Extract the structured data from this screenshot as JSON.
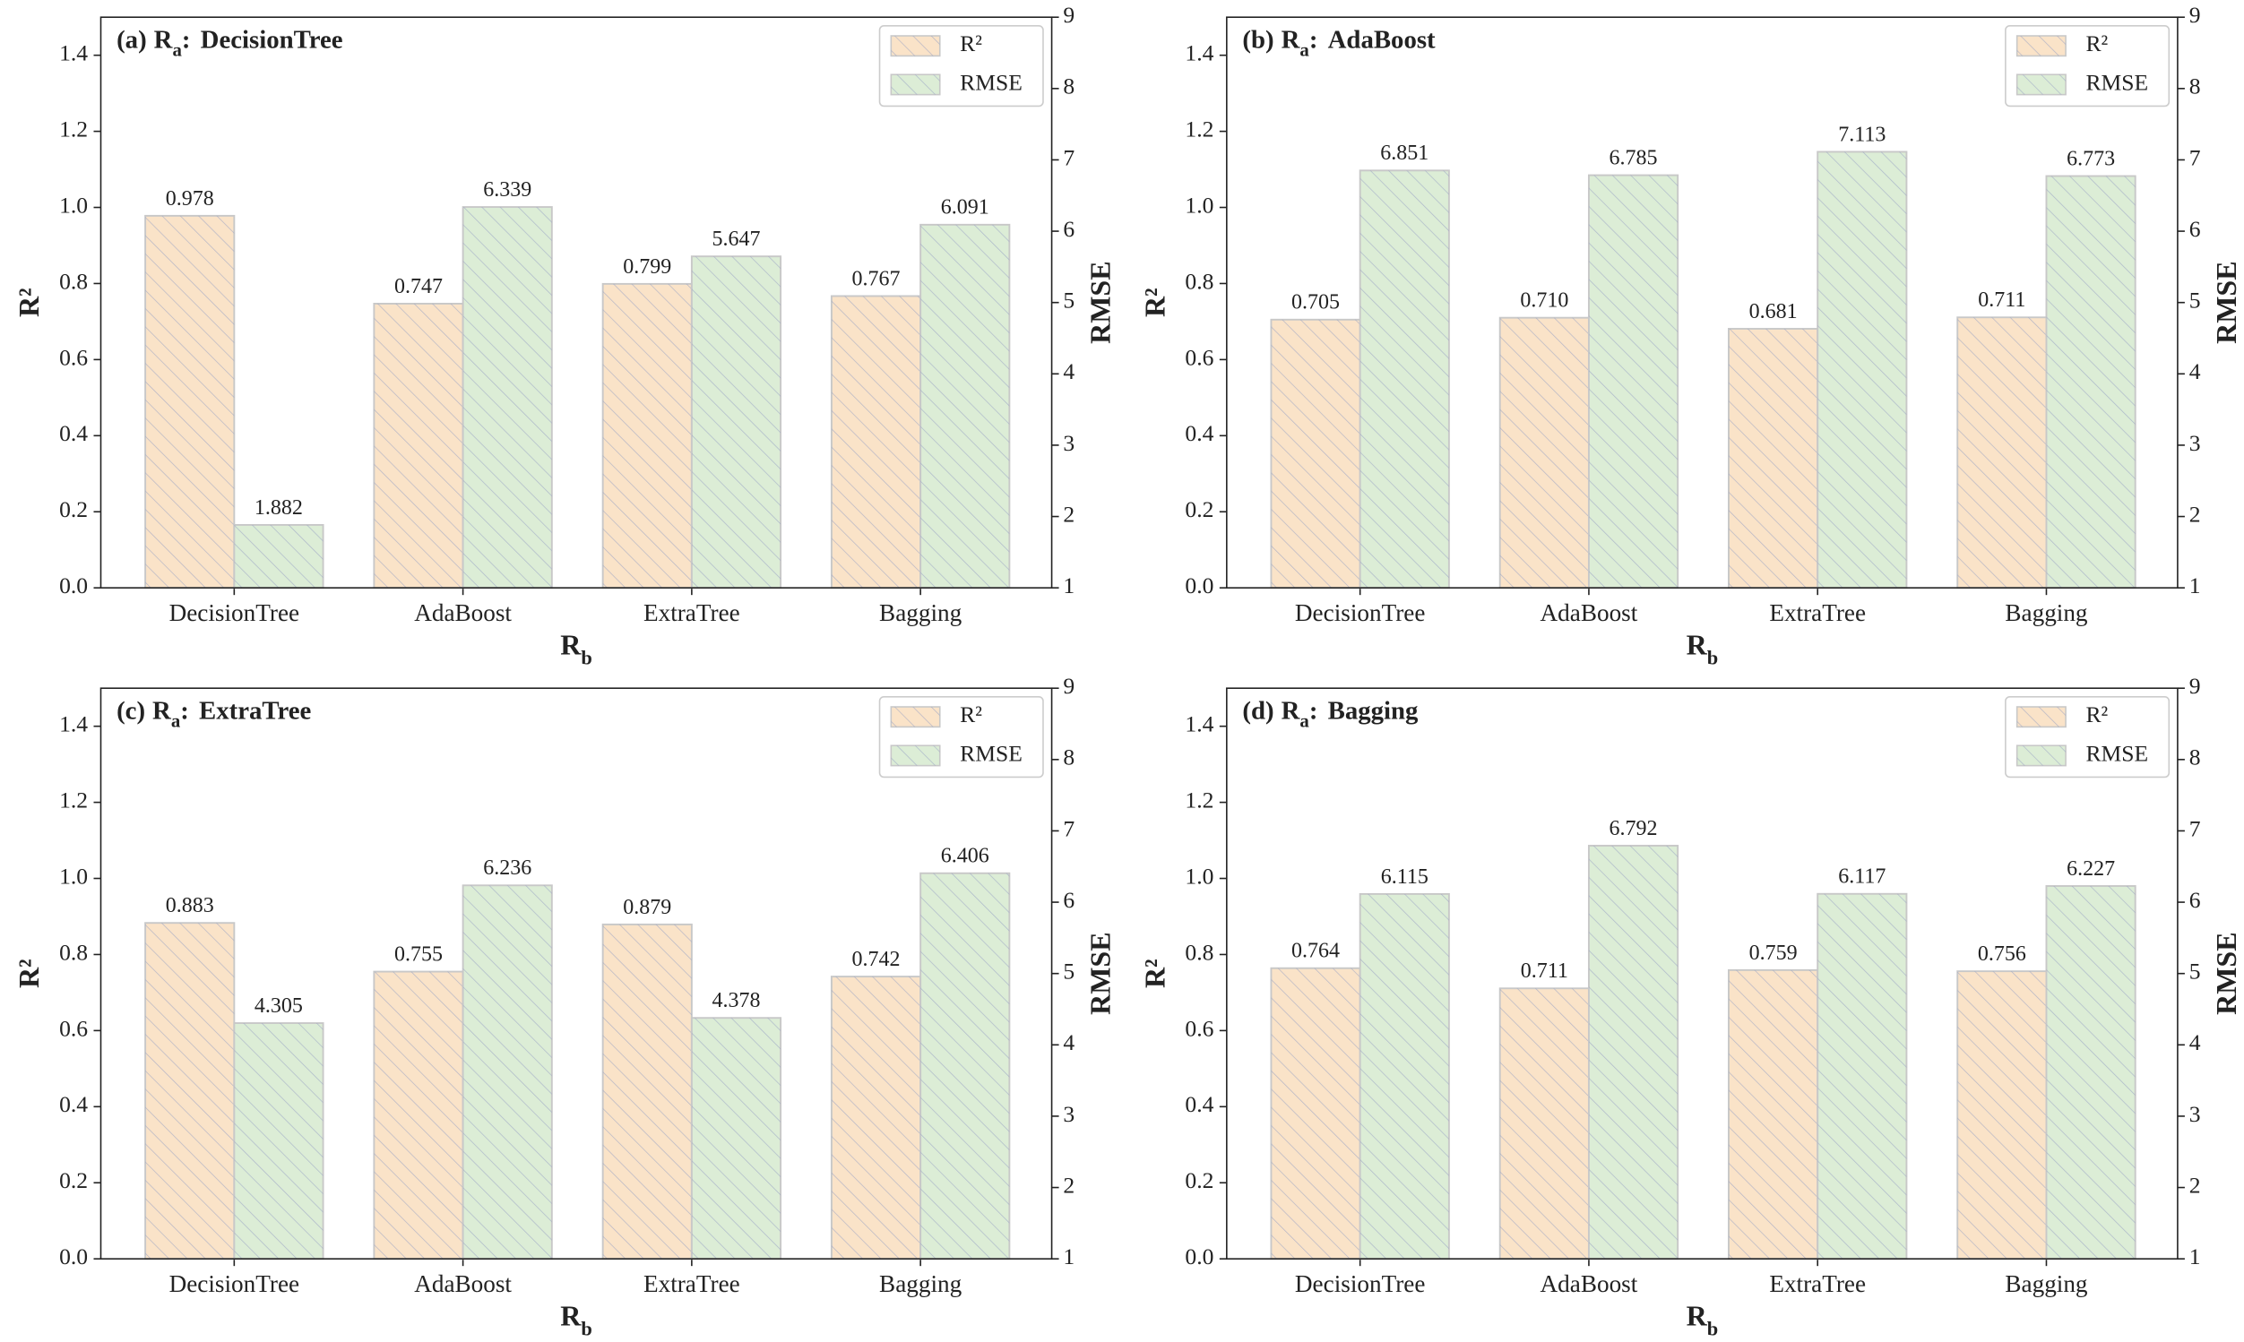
{
  "chart_data": [
    {
      "type": "bar",
      "panel": "(a)",
      "title_var": "R",
      "title_sub": "a",
      "title_sep": ":",
      "title": "DecisionTree",
      "x_label": "R",
      "x_label_sub": "b",
      "y_label": "R²",
      "y2_label": "RMSE",
      "categories": [
        "DecisionTree",
        "AdaBoost",
        "ExtraTree",
        "Bagging"
      ],
      "series": [
        {
          "name": "R²",
          "color": "#fae3c8",
          "values": [
            0.978,
            0.747,
            0.799,
            0.767
          ],
          "value_labels": [
            "0.978",
            "0.747",
            "0.799",
            "0.767"
          ]
        },
        {
          "name": "RMSE",
          "color": "#dcedd6",
          "axis": "y2",
          "values": [
            1.882,
            6.339,
            5.647,
            6.091
          ],
          "value_labels": [
            "1.882",
            "6.339",
            "5.647",
            "6.091"
          ]
        }
      ],
      "ylim": [
        0,
        1.5
      ],
      "yticks": [
        {
          "value": 0,
          "label": "0.0"
        },
        {
          "value": 0.2,
          "label": "0.2"
        },
        {
          "value": 0.4,
          "label": "0.4"
        },
        {
          "value": 0.6,
          "label": "0.6"
        },
        {
          "value": 0.8,
          "label": "0.8"
        },
        {
          "value": 1,
          "label": "1.0"
        },
        {
          "value": 1.2,
          "label": "1.2"
        },
        {
          "value": 1.4,
          "label": "1.4"
        }
      ],
      "y2lim": [
        1,
        9
      ],
      "y2ticks": [
        1,
        2,
        3,
        4,
        5,
        6,
        7,
        8,
        9
      ],
      "legend": "upper right"
    },
    {
      "type": "bar",
      "panel": "(b)",
      "title_var": "R",
      "title_sub": "a",
      "title_sep": ":",
      "title": "AdaBoost",
      "x_label": "R",
      "x_label_sub": "b",
      "y_label": "R²",
      "y2_label": "RMSE",
      "categories": [
        "DecisionTree",
        "AdaBoost",
        "ExtraTree",
        "Bagging"
      ],
      "series": [
        {
          "name": "R²",
          "color": "#fae3c8",
          "values": [
            0.705,
            0.71,
            0.681,
            0.711
          ],
          "value_labels": [
            "0.705",
            "0.710",
            "0.681",
            "0.711"
          ]
        },
        {
          "name": "RMSE",
          "color": "#dcedd6",
          "axis": "y2",
          "values": [
            6.851,
            6.785,
            7.113,
            6.773
          ],
          "value_labels": [
            "6.851",
            "6.785",
            "7.113",
            "6.773"
          ]
        }
      ],
      "ylim": [
        0,
        1.5
      ],
      "yticks": [
        {
          "value": 0,
          "label": "0.0"
        },
        {
          "value": 0.2,
          "label": "0.2"
        },
        {
          "value": 0.4,
          "label": "0.4"
        },
        {
          "value": 0.6,
          "label": "0.6"
        },
        {
          "value": 0.8,
          "label": "0.8"
        },
        {
          "value": 1,
          "label": "1.0"
        },
        {
          "value": 1.2,
          "label": "1.2"
        },
        {
          "value": 1.4,
          "label": "1.4"
        }
      ],
      "y2lim": [
        1,
        9
      ],
      "y2ticks": [
        1,
        2,
        3,
        4,
        5,
        6,
        7,
        8,
        9
      ],
      "legend": "upper right"
    },
    {
      "type": "bar",
      "panel": "(c)",
      "title_var": "R",
      "title_sub": "a",
      "title_sep": ":",
      "title": "ExtraTree",
      "x_label": "R",
      "x_label_sub": "b",
      "y_label": "R²",
      "y2_label": "RMSE",
      "categories": [
        "DecisionTree",
        "AdaBoost",
        "ExtraTree",
        "Bagging"
      ],
      "series": [
        {
          "name": "R²",
          "color": "#fae3c8",
          "values": [
            0.883,
            0.755,
            0.879,
            0.742
          ],
          "value_labels": [
            "0.883",
            "0.755",
            "0.879",
            "0.742"
          ]
        },
        {
          "name": "RMSE",
          "color": "#dcedd6",
          "axis": "y2",
          "values": [
            4.305,
            6.236,
            4.378,
            6.406
          ],
          "value_labels": [
            "4.305",
            "6.236",
            "4.378",
            "6.406"
          ]
        }
      ],
      "ylim": [
        0,
        1.5
      ],
      "yticks": [
        {
          "value": 0,
          "label": "0.0"
        },
        {
          "value": 0.2,
          "label": "0.2"
        },
        {
          "value": 0.4,
          "label": "0.4"
        },
        {
          "value": 0.6,
          "label": "0.6"
        },
        {
          "value": 0.8,
          "label": "0.8"
        },
        {
          "value": 1,
          "label": "1.0"
        },
        {
          "value": 1.2,
          "label": "1.2"
        },
        {
          "value": 1.4,
          "label": "1.4"
        }
      ],
      "y2lim": [
        1,
        9
      ],
      "y2ticks": [
        1,
        2,
        3,
        4,
        5,
        6,
        7,
        8,
        9
      ],
      "legend": "upper right"
    },
    {
      "type": "bar",
      "panel": "(d)",
      "title_var": "R",
      "title_sub": "a",
      "title_sep": ":",
      "title": "Bagging",
      "x_label": "R",
      "x_label_sub": "b",
      "y_label": "R²",
      "y2_label": "RMSE",
      "categories": [
        "DecisionTree",
        "AdaBoost",
        "ExtraTree",
        "Bagging"
      ],
      "series": [
        {
          "name": "R²",
          "color": "#fae3c8",
          "values": [
            0.764,
            0.711,
            0.759,
            0.756
          ],
          "value_labels": [
            "0.764",
            "0.711",
            "0.759",
            "0.756"
          ]
        },
        {
          "name": "RMSE",
          "color": "#dcedd6",
          "axis": "y2",
          "values": [
            6.115,
            6.792,
            6.117,
            6.227
          ],
          "value_labels": [
            "6.115",
            "6.792",
            "6.117",
            "6.227"
          ]
        }
      ],
      "ylim": [
        0,
        1.5
      ],
      "yticks": [
        {
          "value": 0,
          "label": "0.0"
        },
        {
          "value": 0.2,
          "label": "0.2"
        },
        {
          "value": 0.4,
          "label": "0.4"
        },
        {
          "value": 0.6,
          "label": "0.6"
        },
        {
          "value": 0.8,
          "label": "0.8"
        },
        {
          "value": 1,
          "label": "1.0"
        },
        {
          "value": 1.2,
          "label": "1.2"
        },
        {
          "value": 1.4,
          "label": "1.4"
        }
      ],
      "y2lim": [
        1,
        9
      ],
      "y2ticks": [
        1,
        2,
        3,
        4,
        5,
        6,
        7,
        8,
        9
      ],
      "legend": "upper right"
    }
  ]
}
